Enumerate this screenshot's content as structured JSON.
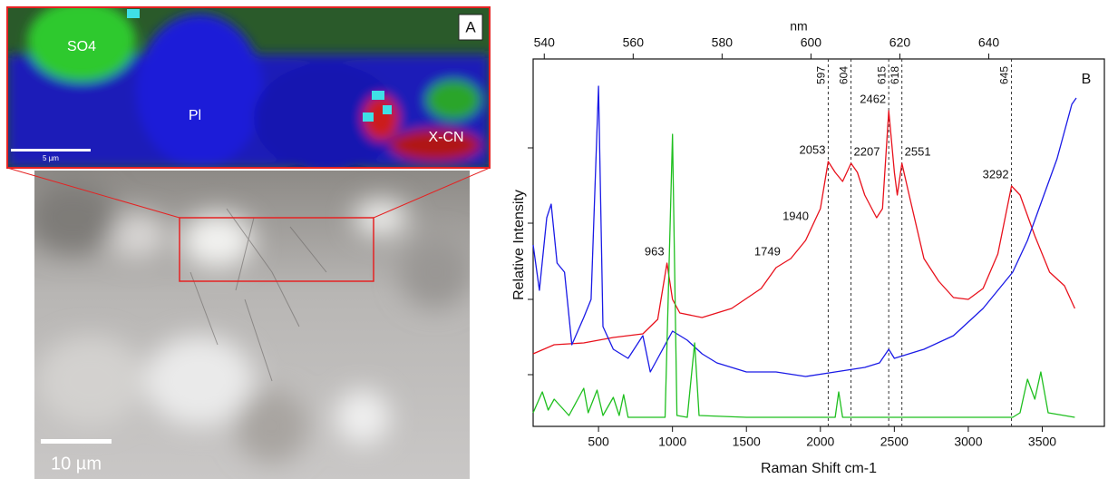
{
  "panels": {
    "map": {
      "label": "A",
      "annotations": [
        "SO4",
        "Pl",
        "X-CN"
      ],
      "scale_bar": "5 µm"
    },
    "micrograph": {
      "scale_bar": "10 µm"
    }
  },
  "chart_data": {
    "type": "line",
    "panel_label": "B",
    "xlabel": "Raman Shift cm-1",
    "ylabel": "Relative Intensity",
    "x2label": "nm",
    "xlim": [
      58,
      3920
    ],
    "xticks": [
      500,
      1000,
      1500,
      2000,
      2500,
      3000,
      3500
    ],
    "x2lim": [
      537.5,
      666
    ],
    "x2ticks": [
      540,
      560,
      580,
      600,
      620,
      640
    ],
    "ylim": [
      0,
      40.5
    ],
    "yticks": [
      5.7,
      14,
      22.4,
      30.7
    ],
    "series": [
      {
        "color": "#e8111c",
        "x": [
          58,
          200,
          400,
          600,
          800,
          900,
          963,
          1000,
          1050,
          1200,
          1400,
          1600,
          1700,
          1800,
          1900,
          2000,
          2053,
          2100,
          2150,
          2207,
          2250,
          2300,
          2380,
          2420,
          2462,
          2500,
          2520,
          2551,
          2600,
          2700,
          2800,
          2900,
          3000,
          3100,
          3200,
          3292,
          3350,
          3450,
          3550,
          3650,
          3720
        ],
        "values": [
          8,
          9,
          9.2,
          9.8,
          10.2,
          11.8,
          18,
          14,
          12.5,
          12,
          13,
          15.2,
          17.5,
          18.5,
          20.5,
          24,
          29.2,
          28,
          27,
          29,
          28,
          25.5,
          23,
          24,
          34.8,
          28,
          25.5,
          29,
          25.5,
          18.5,
          16,
          14.2,
          14,
          15.2,
          19,
          26.5,
          25.5,
          21,
          17,
          15.5,
          13
        ]
      },
      {
        "color": "#1a1ae6",
        "x": [
          58,
          100,
          150,
          180,
          220,
          270,
          320,
          400,
          450,
          500,
          530,
          600,
          700,
          800,
          850,
          900,
          1000,
          1100,
          1200,
          1300,
          1500,
          1700,
          1900,
          2100,
          2300,
          2400,
          2462,
          2500,
          2700,
          2900,
          3100,
          3300,
          3400,
          3500,
          3600,
          3700,
          3730
        ],
        "values": [
          20,
          15,
          23,
          24.5,
          18,
          17,
          9,
          12,
          14,
          37.5,
          11,
          8.5,
          7.5,
          10,
          6,
          7.5,
          10.5,
          9.5,
          8,
          7,
          6,
          6,
          5.5,
          6,
          6.5,
          7,
          8.5,
          7.5,
          8.5,
          10,
          13,
          17,
          20.5,
          25,
          29.5,
          35.5,
          36.2
        ]
      },
      {
        "color": "#1fbf1f",
        "x": [
          58,
          120,
          160,
          200,
          300,
          400,
          430,
          490,
          530,
          600,
          640,
          670,
          700,
          950,
          1000,
          1030,
          1100,
          1150,
          1180,
          1500,
          2100,
          2124,
          2150,
          3300,
          3350,
          3400,
          3450,
          3490,
          3540,
          3720
        ],
        "values": [
          1.5,
          3.8,
          1.8,
          3,
          1.2,
          4.2,
          1.5,
          4,
          1.2,
          3.2,
          1.2,
          3.5,
          1,
          1,
          32.2,
          1.2,
          1,
          9.2,
          1.2,
          1,
          1,
          3.8,
          1,
          1,
          1.5,
          5.2,
          3,
          6,
          1.5,
          1
        ]
      }
    ],
    "reference_lines": [
      {
        "x": 2053,
        "label": 597
      },
      {
        "x": 2207,
        "label": 604
      },
      {
        "x": 2462,
        "label": 615
      },
      {
        "x": 2551,
        "label": 618
      },
      {
        "x": 3292,
        "label": 645
      }
    ],
    "peak_labels": [
      963,
      1749,
      1940,
      2053,
      2207,
      2462,
      2551,
      3292
    ]
  }
}
